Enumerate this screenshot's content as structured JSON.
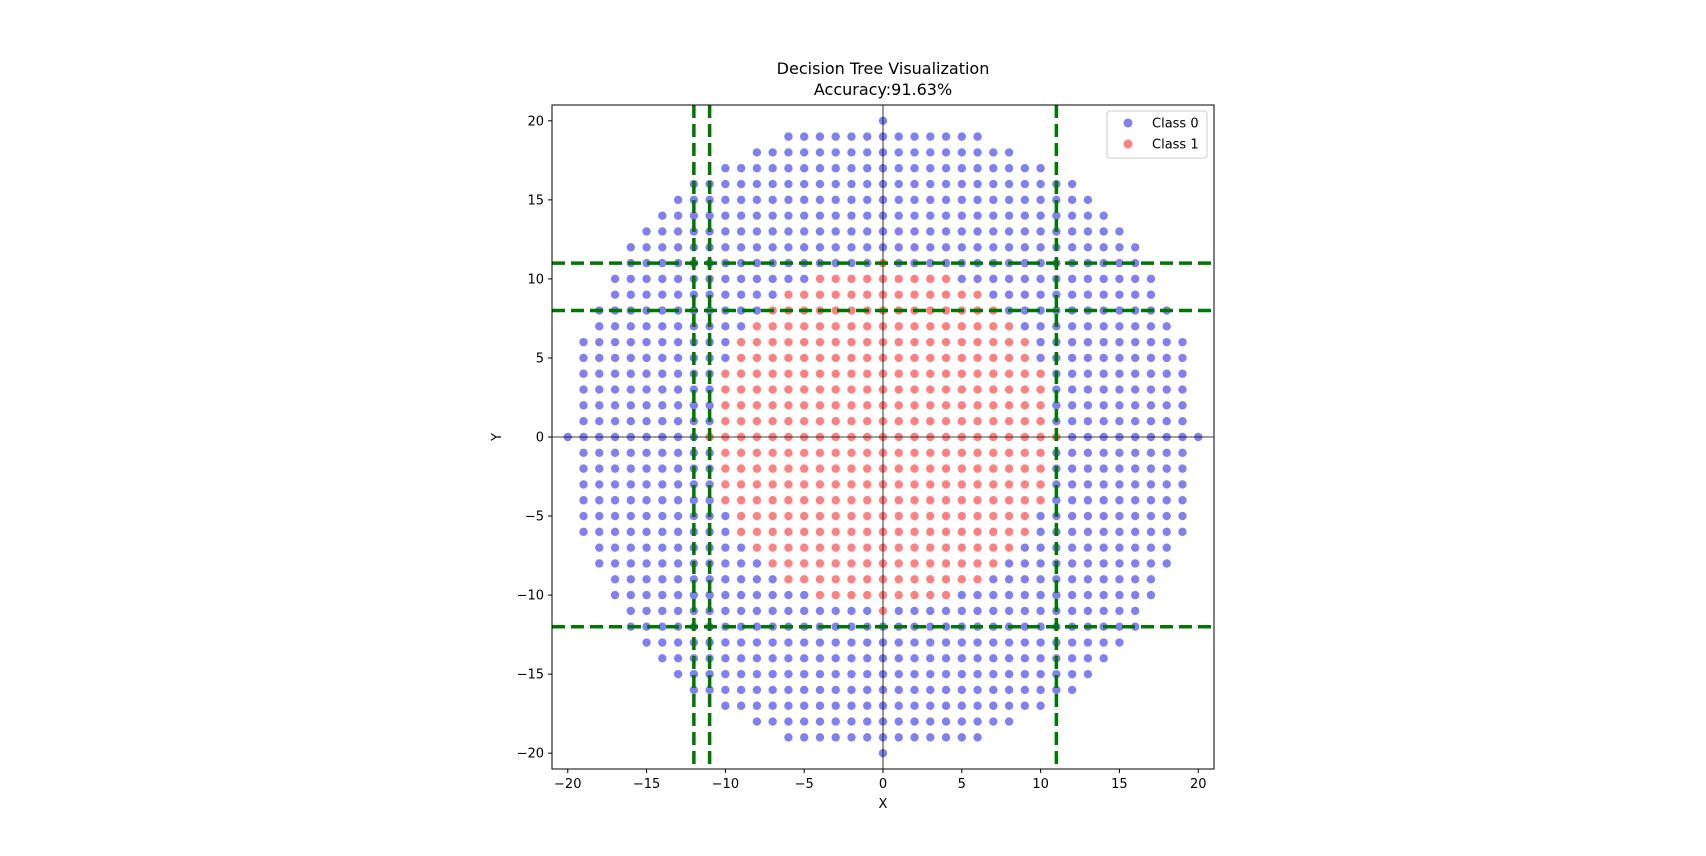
{
  "chart_data": {
    "type": "scatter",
    "title": "Decision Tree Visualization",
    "subtitle": "Accuracy:91.63%",
    "xlabel": "X",
    "ylabel": "Y",
    "xlim": [
      -21,
      21
    ],
    "ylim": [
      -21,
      21
    ],
    "x_ticks": [
      -20,
      -15,
      -10,
      -5,
      0,
      5,
      10,
      15,
      20
    ],
    "y_ticks": [
      -20,
      -15,
      -10,
      -5,
      0,
      5,
      10,
      15,
      20
    ],
    "x_tick_labels": [
      "−20",
      "−15",
      "−10",
      "−5",
      "0",
      "5",
      "10",
      "15",
      "20"
    ],
    "y_tick_labels": [
      "−20",
      "−15",
      "−10",
      "−5",
      "0",
      "5",
      "10",
      "15",
      "20"
    ],
    "grid": false,
    "legend_position": "top-right",
    "zero_lines": {
      "x": 0,
      "y": 0
    },
    "points": {
      "region": "integer grid points with x² + y² ≤ 400",
      "class_1_region": "x² + y² ≤ 121 (approx.)",
      "other": "Class 0"
    },
    "series": [
      {
        "name": "Class 0",
        "color": "#5555ee"
      },
      {
        "name": "Class 1",
        "color": "#ff5555"
      }
    ],
    "decision_boundaries": {
      "color": "#007700",
      "vertical_x": [
        -12,
        -11,
        11
      ],
      "horizontal_y": [
        11,
        8,
        -12
      ]
    }
  }
}
